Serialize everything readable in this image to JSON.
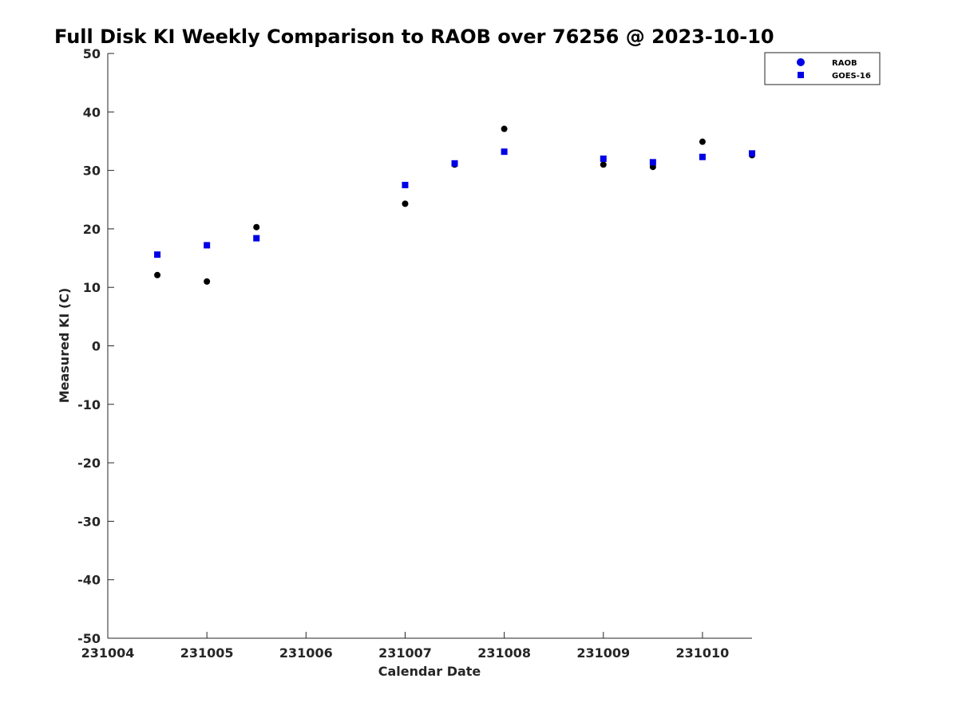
{
  "chart_data": {
    "type": "scatter",
    "title": "Full Disk KI Weekly Comparison to RAOB over 76256 @ 2023-10-10",
    "xlabel": "Calendar Date",
    "ylabel": "Measured KI (C)",
    "xlim": [
      "2023-10-04",
      "2023-10-10T12:00"
    ],
    "ylim": [
      -50,
      50
    ],
    "x_ticks": [
      "231004",
      "231005",
      "231006",
      "231007",
      "231008",
      "231009",
      "231010"
    ],
    "y_ticks": [
      "50",
      "40",
      "30",
      "20",
      "10",
      "0",
      "-10",
      "-20",
      "-30",
      "-40",
      "-50"
    ],
    "grid": false,
    "legend_position": "top-right",
    "series": [
      {
        "name": "RAOB",
        "marker": "circle",
        "color": "#000000",
        "legend_color": "#0000e6",
        "points": [
          {
            "x": "2023-10-04T12:00",
            "y": 12.1
          },
          {
            "x": "2023-10-05T00:00",
            "y": 11.0
          },
          {
            "x": "2023-10-05T12:00",
            "y": 20.3
          },
          {
            "x": "2023-10-07T00:00",
            "y": 24.3
          },
          {
            "x": "2023-10-07T12:00",
            "y": 31.0
          },
          {
            "x": "2023-10-08T00:00",
            "y": 37.1
          },
          {
            "x": "2023-10-09T00:00",
            "y": 31.0
          },
          {
            "x": "2023-10-09T12:00",
            "y": 30.6
          },
          {
            "x": "2023-10-10T00:00",
            "y": 34.9
          },
          {
            "x": "2023-10-10T12:00",
            "y": 32.6
          }
        ]
      },
      {
        "name": "GOES-16",
        "marker": "square",
        "color": "#0000e6",
        "legend_color": "#0000e6",
        "points": [
          {
            "x": "2023-10-04T12:00",
            "y": 15.6
          },
          {
            "x": "2023-10-05T00:00",
            "y": 17.2
          },
          {
            "x": "2023-10-05T12:00",
            "y": 18.4
          },
          {
            "x": "2023-10-07T00:00",
            "y": 27.5
          },
          {
            "x": "2023-10-07T12:00",
            "y": 31.2
          },
          {
            "x": "2023-10-08T00:00",
            "y": 33.2
          },
          {
            "x": "2023-10-09T00:00",
            "y": 32.0
          },
          {
            "x": "2023-10-09T12:00",
            "y": 31.4
          },
          {
            "x": "2023-10-10T00:00",
            "y": 32.3
          },
          {
            "x": "2023-10-10T12:00",
            "y": 32.9
          }
        ]
      }
    ]
  }
}
